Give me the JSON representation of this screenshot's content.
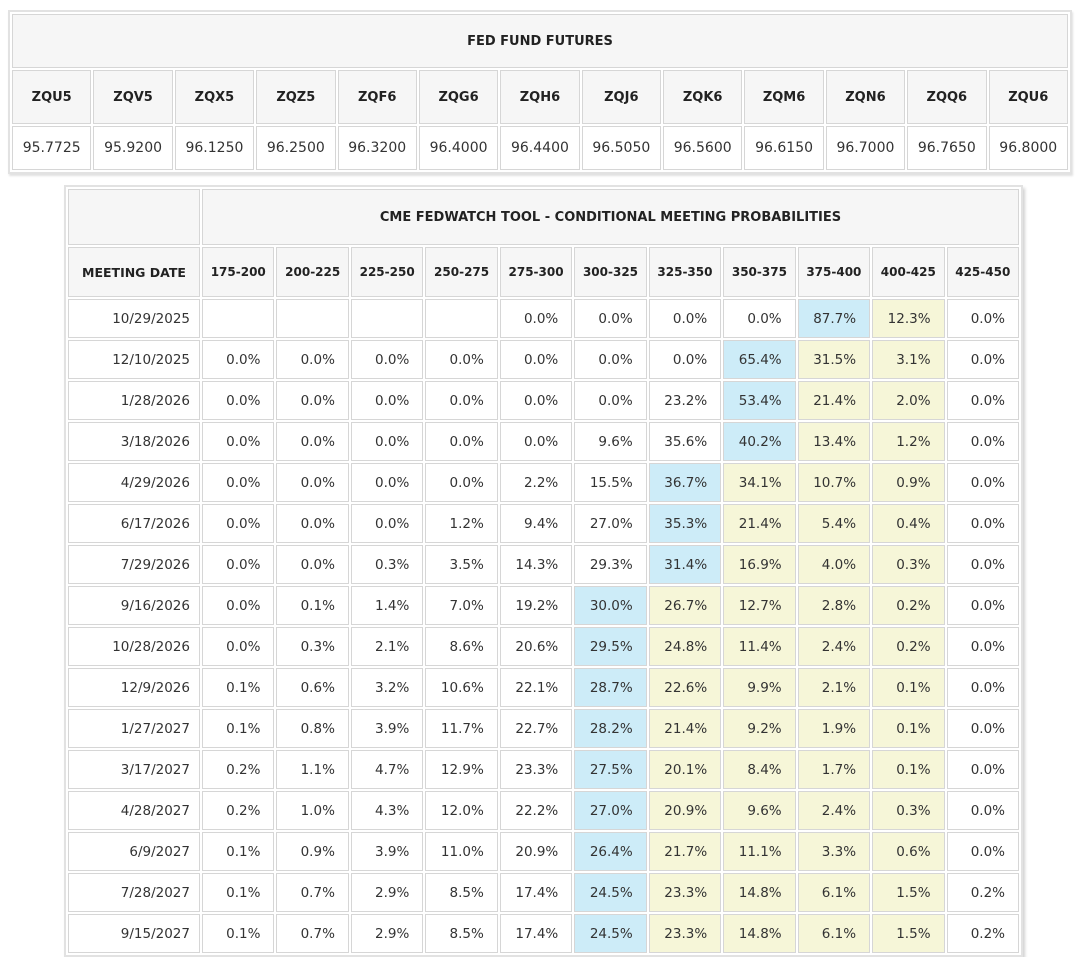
{
  "colors": {
    "highlight_blue": "#cdecf8",
    "highlight_yellow": "#f6f6d8",
    "header_bg": "#f6f6f6",
    "cell_border": "#d6d6d6",
    "text": "#333333"
  },
  "futures_table": {
    "title": "FED FUND FUTURES",
    "tickers": [
      "ZQU5",
      "ZQV5",
      "ZQX5",
      "ZQZ5",
      "ZQF6",
      "ZQG6",
      "ZQH6",
      "ZQJ6",
      "ZQK6",
      "ZQM6",
      "ZQN6",
      "ZQQ6",
      "ZQU6"
    ],
    "prices": [
      "95.7725",
      "95.9200",
      "96.1250",
      "96.2500",
      "96.3200",
      "96.4000",
      "96.4400",
      "96.5050",
      "96.5600",
      "96.6150",
      "96.7000",
      "96.7650",
      "96.8000"
    ]
  },
  "fedwatch_table": {
    "title": "CME FEDWATCH TOOL - CONDITIONAL MEETING PROBABILITIES",
    "meeting_date_header": "MEETING DATE",
    "rate_range_headers": [
      "175-200",
      "200-225",
      "225-250",
      "250-275",
      "275-300",
      "300-325",
      "325-350",
      "350-375",
      "375-400",
      "400-425",
      "425-450"
    ],
    "rows": [
      {
        "date": "10/29/2025",
        "values": [
          "",
          "",
          "",
          "",
          "0.0%",
          "0.0%",
          "0.0%",
          "0.0%",
          "87.7%",
          "12.3%",
          "0.0%"
        ],
        "hl": [
          "",
          "",
          "",
          "",
          "",
          "",
          "",
          "",
          "blue",
          "yellow",
          ""
        ]
      },
      {
        "date": "12/10/2025",
        "values": [
          "0.0%",
          "0.0%",
          "0.0%",
          "0.0%",
          "0.0%",
          "0.0%",
          "0.0%",
          "65.4%",
          "31.5%",
          "3.1%",
          "0.0%"
        ],
        "hl": [
          "",
          "",
          "",
          "",
          "",
          "",
          "",
          "blue",
          "yellow",
          "yellow",
          ""
        ]
      },
      {
        "date": "1/28/2026",
        "values": [
          "0.0%",
          "0.0%",
          "0.0%",
          "0.0%",
          "0.0%",
          "0.0%",
          "23.2%",
          "53.4%",
          "21.4%",
          "2.0%",
          "0.0%"
        ],
        "hl": [
          "",
          "",
          "",
          "",
          "",
          "",
          "",
          "blue",
          "yellow",
          "yellow",
          ""
        ]
      },
      {
        "date": "3/18/2026",
        "values": [
          "0.0%",
          "0.0%",
          "0.0%",
          "0.0%",
          "0.0%",
          "9.6%",
          "35.6%",
          "40.2%",
          "13.4%",
          "1.2%",
          "0.0%"
        ],
        "hl": [
          "",
          "",
          "",
          "",
          "",
          "",
          "",
          "blue",
          "yellow",
          "yellow",
          ""
        ]
      },
      {
        "date": "4/29/2026",
        "values": [
          "0.0%",
          "0.0%",
          "0.0%",
          "0.0%",
          "2.2%",
          "15.5%",
          "36.7%",
          "34.1%",
          "10.7%",
          "0.9%",
          "0.0%"
        ],
        "hl": [
          "",
          "",
          "",
          "",
          "",
          "",
          "blue",
          "yellow",
          "yellow",
          "yellow",
          ""
        ]
      },
      {
        "date": "6/17/2026",
        "values": [
          "0.0%",
          "0.0%",
          "0.0%",
          "1.2%",
          "9.4%",
          "27.0%",
          "35.3%",
          "21.4%",
          "5.4%",
          "0.4%",
          "0.0%"
        ],
        "hl": [
          "",
          "",
          "",
          "",
          "",
          "",
          "blue",
          "yellow",
          "yellow",
          "yellow",
          ""
        ]
      },
      {
        "date": "7/29/2026",
        "values": [
          "0.0%",
          "0.0%",
          "0.3%",
          "3.5%",
          "14.3%",
          "29.3%",
          "31.4%",
          "16.9%",
          "4.0%",
          "0.3%",
          "0.0%"
        ],
        "hl": [
          "",
          "",
          "",
          "",
          "",
          "",
          "blue",
          "yellow",
          "yellow",
          "yellow",
          ""
        ]
      },
      {
        "date": "9/16/2026",
        "values": [
          "0.0%",
          "0.1%",
          "1.4%",
          "7.0%",
          "19.2%",
          "30.0%",
          "26.7%",
          "12.7%",
          "2.8%",
          "0.2%",
          "0.0%"
        ],
        "hl": [
          "",
          "",
          "",
          "",
          "",
          "blue",
          "yellow",
          "yellow",
          "yellow",
          "yellow",
          ""
        ]
      },
      {
        "date": "10/28/2026",
        "values": [
          "0.0%",
          "0.3%",
          "2.1%",
          "8.6%",
          "20.6%",
          "29.5%",
          "24.8%",
          "11.4%",
          "2.4%",
          "0.2%",
          "0.0%"
        ],
        "hl": [
          "",
          "",
          "",
          "",
          "",
          "blue",
          "yellow",
          "yellow",
          "yellow",
          "yellow",
          ""
        ]
      },
      {
        "date": "12/9/2026",
        "values": [
          "0.1%",
          "0.6%",
          "3.2%",
          "10.6%",
          "22.1%",
          "28.7%",
          "22.6%",
          "9.9%",
          "2.1%",
          "0.1%",
          "0.0%"
        ],
        "hl": [
          "",
          "",
          "",
          "",
          "",
          "blue",
          "yellow",
          "yellow",
          "yellow",
          "yellow",
          ""
        ]
      },
      {
        "date": "1/27/2027",
        "values": [
          "0.1%",
          "0.8%",
          "3.9%",
          "11.7%",
          "22.7%",
          "28.2%",
          "21.4%",
          "9.2%",
          "1.9%",
          "0.1%",
          "0.0%"
        ],
        "hl": [
          "",
          "",
          "",
          "",
          "",
          "blue",
          "yellow",
          "yellow",
          "yellow",
          "yellow",
          ""
        ]
      },
      {
        "date": "3/17/2027",
        "values": [
          "0.2%",
          "1.1%",
          "4.7%",
          "12.9%",
          "23.3%",
          "27.5%",
          "20.1%",
          "8.4%",
          "1.7%",
          "0.1%",
          "0.0%"
        ],
        "hl": [
          "",
          "",
          "",
          "",
          "",
          "blue",
          "yellow",
          "yellow",
          "yellow",
          "yellow",
          ""
        ]
      },
      {
        "date": "4/28/2027",
        "values": [
          "0.2%",
          "1.0%",
          "4.3%",
          "12.0%",
          "22.2%",
          "27.0%",
          "20.9%",
          "9.6%",
          "2.4%",
          "0.3%",
          "0.0%"
        ],
        "hl": [
          "",
          "",
          "",
          "",
          "",
          "blue",
          "yellow",
          "yellow",
          "yellow",
          "yellow",
          ""
        ]
      },
      {
        "date": "6/9/2027",
        "values": [
          "0.1%",
          "0.9%",
          "3.9%",
          "11.0%",
          "20.9%",
          "26.4%",
          "21.7%",
          "11.1%",
          "3.3%",
          "0.6%",
          "0.0%"
        ],
        "hl": [
          "",
          "",
          "",
          "",
          "",
          "blue",
          "yellow",
          "yellow",
          "yellow",
          "yellow",
          ""
        ]
      },
      {
        "date": "7/28/2027",
        "values": [
          "0.1%",
          "0.7%",
          "2.9%",
          "8.5%",
          "17.4%",
          "24.5%",
          "23.3%",
          "14.8%",
          "6.1%",
          "1.5%",
          "0.2%"
        ],
        "hl": [
          "",
          "",
          "",
          "",
          "",
          "blue",
          "yellow",
          "yellow",
          "yellow",
          "yellow",
          ""
        ]
      },
      {
        "date": "9/15/2027",
        "values": [
          "0.1%",
          "0.7%",
          "2.9%",
          "8.5%",
          "17.4%",
          "24.5%",
          "23.3%",
          "14.8%",
          "6.1%",
          "1.5%",
          "0.2%"
        ],
        "hl": [
          "",
          "",
          "",
          "",
          "",
          "blue",
          "yellow",
          "yellow",
          "yellow",
          "yellow",
          ""
        ]
      }
    ]
  }
}
